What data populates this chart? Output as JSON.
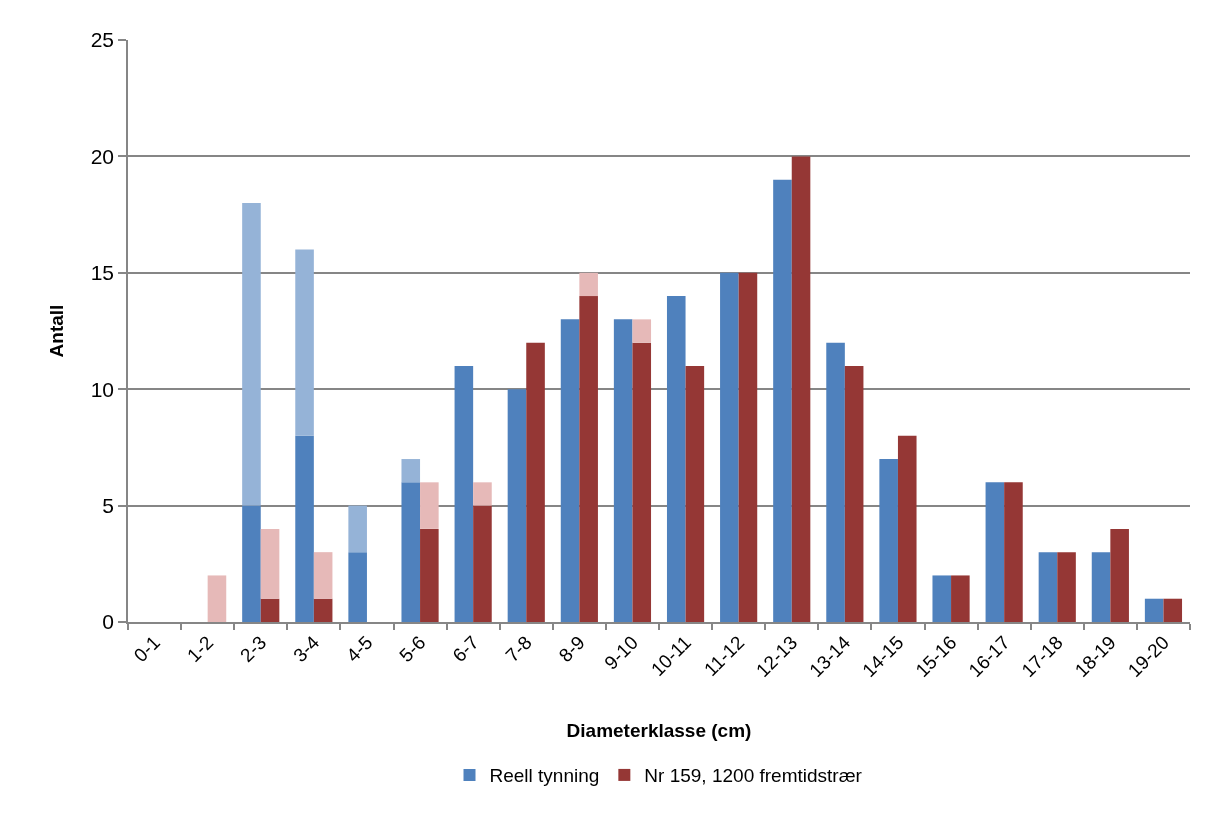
{
  "chart_data": {
    "type": "bar",
    "xlabel": "Diameterklasse (cm)",
    "ylabel": "Antall",
    "categories": [
      "0-1",
      "1-2",
      "2-3",
      "3-4",
      "4-5",
      "5-6",
      "6-7",
      "7-8",
      "8-9",
      "9-10",
      "10-11",
      "11-12",
      "12-13",
      "13-14",
      "14-15",
      "15-16",
      "16-17",
      "17-18",
      "18-19",
      "19-20"
    ],
    "series": [
      {
        "name": "Reell tynning",
        "color": "#4f81bd",
        "values": [
          null,
          null,
          5,
          8,
          3,
          6,
          11,
          10,
          13,
          13,
          14,
          15,
          19,
          12,
          7,
          2,
          6,
          3,
          3,
          1
        ],
        "base": [
          null,
          null,
          0,
          0,
          0,
          0,
          0,
          0,
          0,
          0,
          0,
          0,
          0,
          0,
          0,
          0,
          0,
          0,
          0,
          0
        ]
      },
      {
        "color": "#95b3d7",
        "values": [
          null,
          null,
          13,
          8,
          2,
          1,
          null,
          null,
          null,
          null,
          null,
          null,
          null,
          null,
          null,
          null,
          null,
          null,
          null,
          null
        ],
        "base": [
          null,
          null,
          5,
          8,
          3,
          6,
          null,
          null,
          null,
          null,
          null,
          null,
          null,
          null,
          null,
          null,
          null,
          null,
          null,
          null
        ]
      },
      {
        "name": "Nr 159, 1200 fremtidstrær",
        "color": "#953735",
        "values": [
          null,
          null,
          1,
          1,
          null,
          4,
          5,
          12,
          14,
          12,
          11,
          15,
          20,
          11,
          8,
          2,
          6,
          3,
          4,
          1
        ],
        "base": [
          null,
          null,
          0,
          0,
          null,
          0,
          0,
          0,
          0,
          0,
          0,
          0,
          0,
          0,
          0,
          0,
          0,
          0,
          0,
          0
        ]
      },
      {
        "color": "#e6b9b8",
        "values": [
          null,
          2,
          3,
          2,
          null,
          2,
          1,
          null,
          1,
          1,
          null,
          null,
          null,
          null,
          null,
          null,
          null,
          null,
          null,
          null
        ],
        "base": [
          null,
          0,
          1,
          1,
          null,
          4,
          5,
          null,
          14,
          12,
          null,
          null,
          null,
          null,
          null,
          null,
          null,
          null,
          null,
          null
        ]
      }
    ],
    "ylim": [
      0,
      25
    ],
    "yticks": [
      0,
      5,
      10,
      15,
      20,
      25
    ],
    "grid": "y",
    "legend": "bottom"
  }
}
